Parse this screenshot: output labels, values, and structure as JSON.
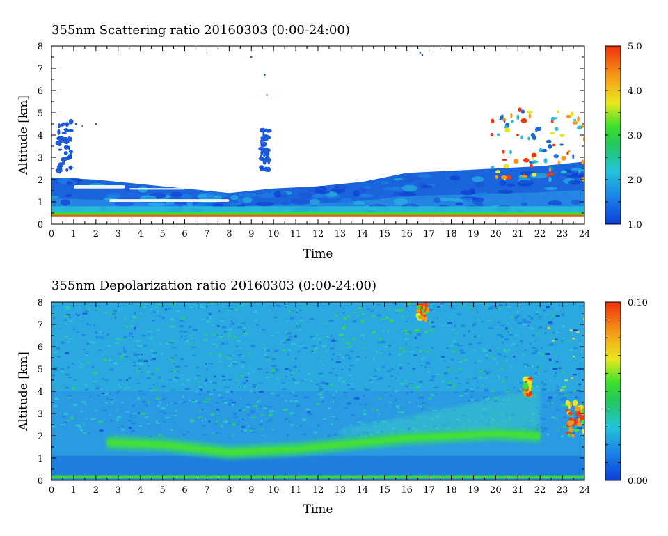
{
  "chart_data": [
    {
      "type": "heatmap",
      "title": "355nm Scattering ratio  20160303 (0:00-24:00)",
      "xlabel": "Time",
      "ylabel": "Altitude [km]",
      "xlim": [
        0,
        24
      ],
      "ylim": [
        0,
        8
      ],
      "x_ticks": [
        "0",
        "1",
        "2",
        "3",
        "4",
        "5",
        "6",
        "7",
        "8",
        "9",
        "10",
        "11",
        "12",
        "13",
        "14",
        "15",
        "16",
        "17",
        "18",
        "19",
        "20",
        "21",
        "22",
        "23",
        "24"
      ],
      "y_ticks": [
        "0",
        "1",
        "2",
        "3",
        "4",
        "5",
        "6",
        "7",
        "8"
      ],
      "colorbar": {
        "range": [
          1.0,
          5.0
        ],
        "ticks": [
          "1.0",
          "2.0",
          "3.0",
          "4.0",
          "5.0"
        ]
      },
      "background": "no data above cloud/aerosol layers (white)",
      "features": {
        "boundary_layer_top_km": [
          [
            0,
            2.1
          ],
          [
            2,
            2.0
          ],
          [
            4,
            1.8
          ],
          [
            6,
            1.6
          ],
          [
            8,
            1.4
          ],
          [
            10,
            1.6
          ],
          [
            12,
            1.7
          ],
          [
            14,
            1.9
          ],
          [
            16,
            2.3
          ],
          [
            18,
            2.4
          ],
          [
            20,
            2.5
          ],
          [
            22,
            2.6
          ],
          [
            24,
            2.8
          ]
        ],
        "surface_layer_km": [
          0.35,
          0.55
        ],
        "cloud_patches": [
          {
            "t": [
              0.3,
              0.9
            ],
            "alt": [
              2.3,
              4.7
            ]
          },
          {
            "t": [
              9.4,
              9.8
            ],
            "alt": [
              2.3,
              4.3
            ]
          },
          {
            "t": [
              19.8,
              24.0
            ],
            "alt": [
              2.0,
              5.2
            ]
          }
        ]
      }
    },
    {
      "type": "heatmap",
      "title": "355nm Depolarization ratio  20160303 (0:00-24:00)",
      "xlabel": "Time",
      "ylabel": "Altitude [km]",
      "xlim": [
        0,
        24
      ],
      "ylim": [
        0,
        8
      ],
      "x_ticks": [
        "0",
        "1",
        "2",
        "3",
        "4",
        "5",
        "6",
        "7",
        "8",
        "9",
        "10",
        "11",
        "12",
        "13",
        "14",
        "15",
        "16",
        "17",
        "18",
        "19",
        "20",
        "21",
        "22",
        "23",
        "24"
      ],
      "y_ticks": [
        "0",
        "1",
        "2",
        "3",
        "4",
        "5",
        "6",
        "7",
        "8"
      ],
      "colorbar": {
        "range": [
          0.0,
          0.1
        ],
        "ticks": [
          "0.00",
          "0.10"
        ]
      },
      "features": {
        "dust_layer_center_km": [
          [
            2.5,
            1.7
          ],
          [
            5,
            1.6
          ],
          [
            8,
            1.25
          ],
          [
            11,
            1.4
          ],
          [
            13,
            1.6
          ],
          [
            16,
            1.9
          ],
          [
            18,
            2.0
          ],
          [
            20,
            2.1
          ],
          [
            22,
            2.0
          ]
        ],
        "high_depol_patches": [
          {
            "t": [
              16.5,
              16.9
            ],
            "alt": [
              7.2,
              7.9
            ]
          },
          {
            "t": [
              21.3,
              21.6
            ],
            "alt": [
              3.8,
              4.6
            ]
          },
          {
            "t": [
              23.2,
              24.0
            ],
            "alt": [
              2.0,
              3.6
            ]
          }
        ]
      }
    }
  ]
}
